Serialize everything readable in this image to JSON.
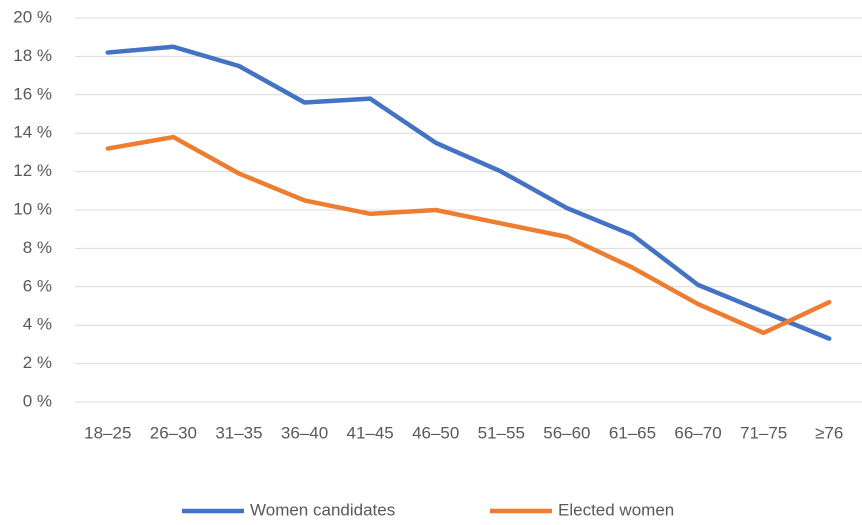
{
  "chart_data": {
    "type": "line",
    "categories": [
      "18–25",
      "26–30",
      "31–35",
      "36–40",
      "41–45",
      "46–50",
      "51–55",
      "56–60",
      "61–65",
      "66–70",
      "71–75",
      "≥76"
    ],
    "series": [
      {
        "name": "Women candidates",
        "color": "#4472c4",
        "values": [
          18.2,
          18.5,
          17.5,
          15.6,
          15.8,
          13.5,
          12.0,
          10.1,
          8.7,
          6.1,
          4.7,
          3.3
        ]
      },
      {
        "name": "Elected women",
        "color": "#ed7d31",
        "values": [
          13.2,
          13.8,
          11.9,
          10.5,
          9.8,
          10.0,
          9.3,
          8.6,
          7.0,
          5.1,
          3.6,
          5.2
        ]
      }
    ],
    "ylim": [
      0,
      20
    ],
    "yticks": [
      {
        "value": 0,
        "label": "0 %"
      },
      {
        "value": 2,
        "label": "2 %"
      },
      {
        "value": 4,
        "label": "4 %"
      },
      {
        "value": 6,
        "label": "6 %"
      },
      {
        "value": 8,
        "label": "8 %"
      },
      {
        "value": 10,
        "label": "10 %"
      },
      {
        "value": 12,
        "label": "12 %"
      },
      {
        "value": 14,
        "label": "14 %"
      },
      {
        "value": 16,
        "label": "16 %"
      },
      {
        "value": 18,
        "label": "18 %"
      },
      {
        "value": 20,
        "label": "20 %"
      }
    ],
    "grid": true,
    "legend": "bottom"
  }
}
